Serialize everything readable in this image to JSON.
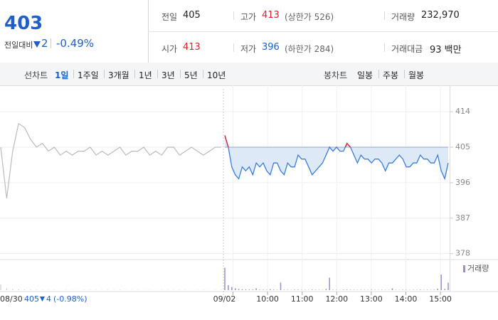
{
  "header": {
    "price": "403",
    "change_label": "전일대비",
    "change": "2",
    "change_pct": "-0.49%",
    "stats": [
      {
        "label": "전일",
        "value": "405",
        "color": "#222222"
      },
      {
        "label": "고가",
        "value": "413",
        "note": "(상한가 526)",
        "color": "#e0202b"
      },
      {
        "label": "거래량",
        "value": "232,970",
        "color": "#222222"
      },
      {
        "label": "시가",
        "value": "413",
        "color": "#e0202b"
      },
      {
        "label": "저가",
        "value": "396",
        "note": "(하한가 284)",
        "color": "#1f5fc8"
      },
      {
        "label": "거래대금",
        "value": "93 백만",
        "color": "#222222"
      }
    ]
  },
  "toolbar": {
    "line_label": "선차트",
    "line_periods": [
      "1일",
      "1주일",
      "3개월",
      "1년",
      "3년",
      "5년",
      "10년"
    ],
    "candle_label": "봉차트",
    "candle_periods": [
      "일봉",
      "주봉",
      "월봉"
    ]
  },
  "chart_data": {
    "type": "line",
    "ylim": [
      376.5,
      419.8
    ],
    "yticks": [
      414,
      405,
      396,
      387,
      378
    ],
    "grid": true,
    "xtick_labels": [
      "09/02",
      "10:00",
      "11:00",
      "12:00",
      "13:00",
      "14:00",
      "15:00"
    ],
    "previous": {
      "date": "08/30",
      "close": "405",
      "change": "4",
      "change_pct": "(-0.98%)",
      "color": "#bbbbbb",
      "values": [
        405,
        392,
        404,
        411,
        410,
        407,
        405,
        406,
        404,
        405,
        403,
        404,
        403,
        404,
        404,
        405,
        403,
        404,
        403,
        404,
        405,
        403,
        404,
        404,
        405,
        403,
        404,
        403,
        405,
        405,
        403,
        404,
        405,
        404,
        403,
        404,
        405,
        405
      ],
      "volume": [
        9000,
        3000,
        2000,
        1500,
        1000,
        800,
        600,
        500,
        400,
        600,
        300,
        500,
        400,
        300,
        600,
        500,
        400,
        300,
        500,
        400,
        600,
        300,
        400,
        500,
        300,
        400,
        300,
        500,
        400,
        300,
        500,
        400,
        300,
        400,
        500,
        300,
        400,
        600
      ]
    },
    "today": {
      "color": "#3b7dd8",
      "up_color": "#e0202b",
      "fill": "#dde9f7",
      "baseline": 405,
      "values": [
        408,
        405,
        400,
        398,
        397,
        400,
        399,
        400,
        398,
        401,
        400,
        401,
        399,
        398,
        401,
        401,
        399,
        398,
        401,
        400,
        400,
        403,
        402,
        402,
        400,
        398,
        399,
        400,
        401,
        403,
        405,
        404,
        405,
        404,
        404,
        406,
        405,
        403,
        401,
        403,
        402,
        402,
        401,
        402,
        402,
        401,
        399,
        401,
        401,
        402,
        403,
        402,
        400,
        400,
        401,
        401,
        403,
        402,
        402,
        401,
        401,
        403,
        399,
        397,
        401
      ],
      "volume_name": "거래량",
      "volume_color": "#a08cc8",
      "volume_lim": [
        0,
        40000
      ],
      "volume": [
        36000,
        8000,
        5000,
        3000,
        2000,
        1500,
        1200,
        1000,
        900,
        3000,
        800,
        700,
        600,
        1500,
        800,
        500,
        12000,
        600,
        500,
        400,
        700,
        800,
        600,
        500,
        400,
        900,
        600,
        500,
        400,
        2000,
        20000,
        600,
        500,
        400,
        700,
        800,
        600,
        500,
        400,
        600,
        500,
        400,
        700,
        500,
        400,
        600,
        500,
        400,
        3000,
        500,
        400,
        600,
        500,
        400,
        600,
        500,
        800,
        400,
        600,
        500,
        700,
        2500,
        25000,
        2000,
        12000
      ]
    }
  }
}
